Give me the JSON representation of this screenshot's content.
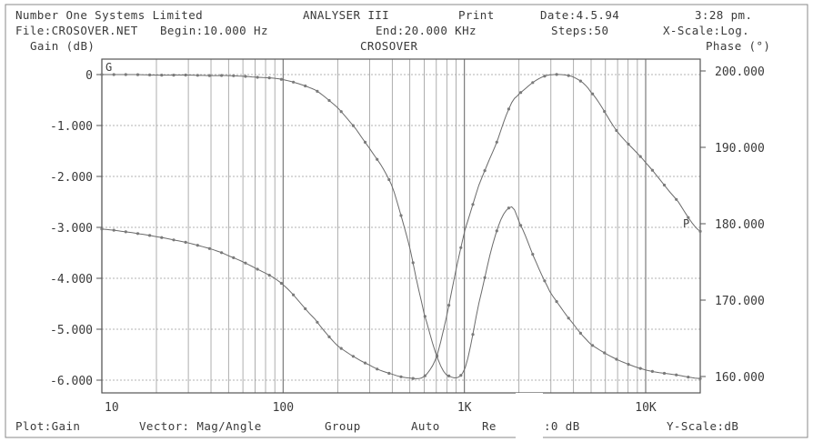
{
  "header": {
    "company": "Number One Systems Limited",
    "program": "ANALYSER III",
    "print": "Print",
    "date": "Date:4.5.94",
    "time": "3:28 pm.",
    "file": "File:CROSOVER.NET",
    "begin": "Begin:10.000 Hz",
    "end": "End:20.000 KHz",
    "steps": "Steps:50",
    "xscale": "X-Scale:Log."
  },
  "footer": {
    "plot": "Plot:Gain",
    "vector": "Vector: Mag/Angle",
    "group": "Group",
    "auto": "Auto",
    "ref_left": "Re",
    "ref_right": ":0 dB",
    "yscale": "Y-Scale:dB"
  },
  "chart_data": {
    "type": "line",
    "title": "CROSOVER",
    "ylabel_left": "Gain (dB)",
    "ylabel_right": "Phase (°)",
    "x_scale": "log",
    "xlim": [
      10,
      20000
    ],
    "ylim_left": [
      -6.2,
      0.1
    ],
    "ylim_right": [
      158,
      200.5
    ],
    "grid": true,
    "x_tick_labels": [
      {
        "value": 10,
        "label": "10"
      },
      {
        "value": 100,
        "label": "100"
      },
      {
        "value": 1000,
        "label": "1K"
      },
      {
        "value": 10000,
        "label": "10K"
      }
    ],
    "y_left_ticks": [
      {
        "value": 0,
        "label": "0"
      },
      {
        "value": -1,
        "label": "-1.000"
      },
      {
        "value": -2,
        "label": "-2.000"
      },
      {
        "value": -3,
        "label": "-3.000"
      },
      {
        "value": -4,
        "label": "-4.000"
      },
      {
        "value": -5,
        "label": "-5.000"
      },
      {
        "value": -6,
        "label": "-6.000"
      }
    ],
    "y_right_ticks": [
      {
        "value": 200,
        "label": "200.000"
      },
      {
        "value": 190,
        "label": "190.000"
      },
      {
        "value": 180,
        "label": "180.000"
      },
      {
        "value": 170,
        "label": "170.000"
      },
      {
        "value": 160,
        "label": "160.000"
      }
    ],
    "series": [
      {
        "name": "G",
        "axis": "left",
        "x": [
          10,
          15,
          20,
          30,
          40,
          50,
          70,
          100,
          150,
          200,
          250,
          300,
          350,
          400,
          450,
          500,
          550,
          600,
          700,
          800,
          1000,
          1200,
          1500,
          1800,
          2000,
          2500,
          3000,
          4000,
          5000,
          7000,
          10000,
          15000,
          20000
        ],
        "values": [
          0,
          0,
          -0.01,
          -0.01,
          -0.02,
          -0.02,
          -0.05,
          -0.1,
          -0.3,
          -0.65,
          -1.05,
          -1.45,
          -1.8,
          -2.2,
          -2.8,
          -3.4,
          -4.1,
          -4.7,
          -5.5,
          -5.9,
          -5.8,
          -4.5,
          -3.1,
          -2.6,
          -2.9,
          -3.7,
          -4.3,
          -4.9,
          -5.3,
          -5.6,
          -5.8,
          -5.9,
          -5.97
        ]
      },
      {
        "name": "P",
        "axis": "right",
        "x": [
          10,
          15,
          20,
          30,
          40,
          50,
          70,
          100,
          150,
          200,
          300,
          400,
          500,
          600,
          700,
          800,
          900,
          1000,
          1200,
          1500,
          1800,
          2000,
          2500,
          3000,
          4000,
          5000,
          7000,
          10000,
          15000,
          20000
        ],
        "values": [
          179.3,
          178.8,
          178.3,
          177.5,
          176.7,
          175.8,
          174.2,
          172.0,
          167.5,
          164.0,
          161.5,
          160.3,
          159.8,
          160.0,
          162.5,
          168.0,
          174.0,
          179.0,
          185.0,
          190.5,
          195.5,
          197.0,
          198.8,
          199.5,
          199.2,
          197.2,
          192.0,
          188.0,
          183.0,
          179.0
        ]
      }
    ]
  }
}
